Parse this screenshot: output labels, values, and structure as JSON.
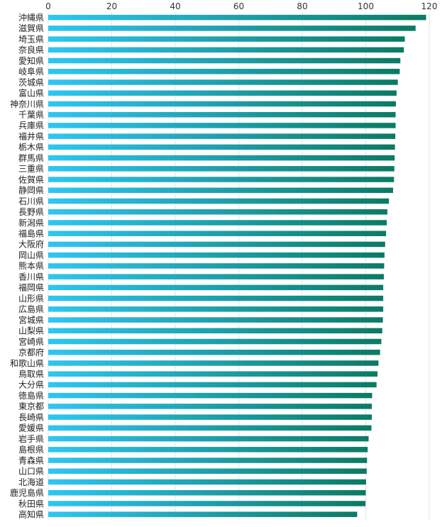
{
  "chart_data": {
    "type": "bar",
    "orientation": "horizontal",
    "xlim": [
      0,
      120
    ],
    "x_ticks": [
      0,
      20,
      40,
      60,
      80,
      100,
      120
    ],
    "grid": true,
    "categories": [
      "沖縄県",
      "滋賀県",
      "埼玉県",
      "奈良県",
      "愛知県",
      "岐阜県",
      "茨城県",
      "富山県",
      "神奈川県",
      "千葉県",
      "兵庫県",
      "福井県",
      "栃木県",
      "群馬県",
      "三重県",
      "佐賀県",
      "静岡県",
      "石川県",
      "長野県",
      "新潟県",
      "福島県",
      "大阪府",
      "岡山県",
      "熊本県",
      "香川県",
      "福岡県",
      "山形県",
      "広島県",
      "宮城県",
      "山梨県",
      "宮崎県",
      "京都府",
      "和歌山県",
      "鳥取県",
      "大分県",
      "徳島県",
      "東京都",
      "長崎県",
      "愛媛県",
      "岩手県",
      "島根県",
      "青森県",
      "山口県",
      "北海道",
      "鹿児島県",
      "秋田県",
      "高知県"
    ],
    "values": [
      119.0,
      115.7,
      112.3,
      112.0,
      110.9,
      110.7,
      110.1,
      109.7,
      109.5,
      109.4,
      109.4,
      109.3,
      109.2,
      109.1,
      109.0,
      108.9,
      108.6,
      107.3,
      106.8,
      106.6,
      106.4,
      106.1,
      105.9,
      105.8,
      105.7,
      105.5,
      105.5,
      105.5,
      105.4,
      105.2,
      104.9,
      104.5,
      104.0,
      103.7,
      103.4,
      102.0,
      101.9,
      101.9,
      101.8,
      100.9,
      100.6,
      100.4,
      100.3,
      100.1,
      100.0,
      99.9,
      97.3
    ],
    "colors": {
      "bar_start": "#2fc6f2",
      "bar_end": "#0b7a63"
    }
  }
}
